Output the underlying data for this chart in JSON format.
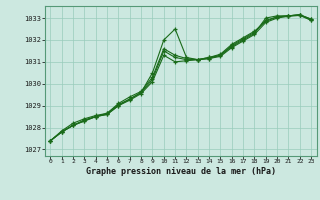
{
  "title": "Graphe pression niveau de la mer (hPa)",
  "xlabel_hours": [
    0,
    1,
    2,
    3,
    4,
    5,
    6,
    7,
    8,
    9,
    10,
    11,
    12,
    13,
    14,
    15,
    16,
    17,
    18,
    19,
    20,
    21,
    22,
    23
  ],
  "line1": [
    1027.4,
    1027.8,
    1028.1,
    1028.3,
    1028.5,
    1028.6,
    1029.0,
    1029.3,
    1029.6,
    1030.5,
    1032.0,
    1032.5,
    1031.2,
    1031.1,
    1031.15,
    1031.3,
    1031.7,
    1032.0,
    1032.3,
    1033.0,
    1033.1,
    1033.1,
    1033.15,
    1032.9
  ],
  "line2": [
    1027.4,
    1027.8,
    1028.1,
    1028.35,
    1028.5,
    1028.65,
    1029.05,
    1029.3,
    1029.6,
    1030.2,
    1031.5,
    1031.2,
    1031.1,
    1031.1,
    1031.2,
    1031.35,
    1031.8,
    1032.1,
    1032.4,
    1032.85,
    1033.05,
    1033.1,
    1033.15,
    1032.95
  ],
  "line3": [
    1027.4,
    1027.85,
    1028.2,
    1028.4,
    1028.55,
    1028.65,
    1029.1,
    1029.4,
    1029.65,
    1030.3,
    1031.6,
    1031.3,
    1031.15,
    1031.1,
    1031.2,
    1031.3,
    1031.75,
    1032.05,
    1032.35,
    1032.9,
    1033.05,
    1033.1,
    1033.15,
    1032.95
  ],
  "line4": [
    1027.4,
    1027.8,
    1028.1,
    1028.3,
    1028.5,
    1028.6,
    1029.0,
    1029.25,
    1029.55,
    1030.1,
    1031.3,
    1031.0,
    1031.05,
    1031.1,
    1031.15,
    1031.25,
    1031.65,
    1031.95,
    1032.25,
    1032.8,
    1033.0,
    1033.08,
    1033.12,
    1032.9
  ],
  "line_color": "#1a6b1a",
  "bg_color": "#cce8e0",
  "grid_color": "#99ccbb",
  "ylim": [
    1026.7,
    1033.55
  ],
  "yticks": [
    1027,
    1028,
    1029,
    1030,
    1031,
    1032,
    1033
  ]
}
